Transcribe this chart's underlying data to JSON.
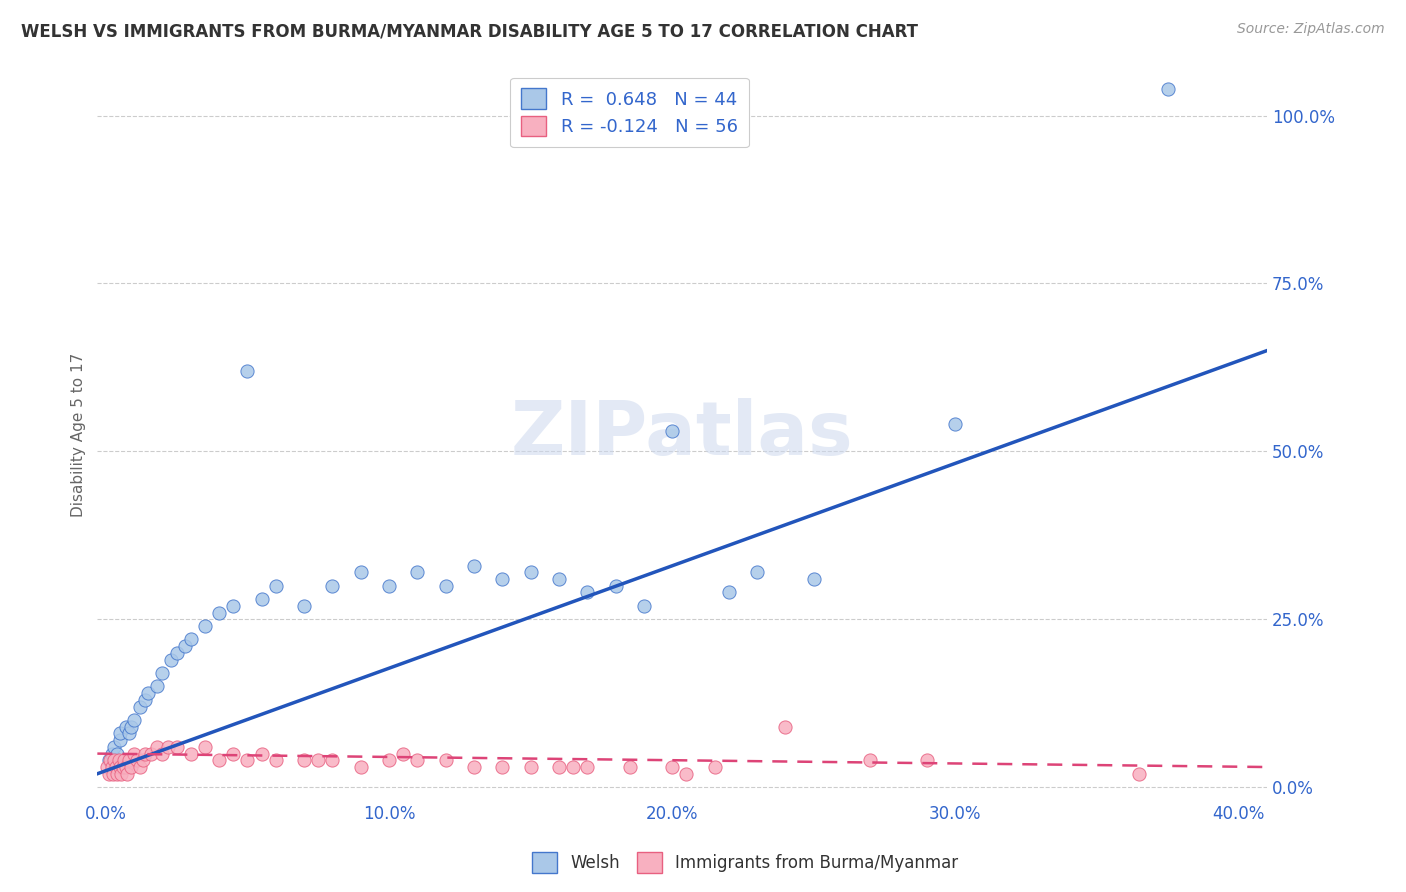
{
  "title": "WELSH VS IMMIGRANTS FROM BURMA/MYANMAR DISABILITY AGE 5 TO 17 CORRELATION CHART",
  "source": "Source: ZipAtlas.com",
  "ylabel": "Disability Age 5 to 17",
  "ylabel_ticks": [
    "0.0%",
    "25.0%",
    "50.0%",
    "75.0%",
    "100.0%"
  ],
  "ylabel_tick_vals": [
    0,
    25,
    50,
    75,
    100
  ],
  "xlabel_ticks": [
    "0.0%",
    "10.0%",
    "20.0%",
    "30.0%",
    "40.0%"
  ],
  "xlabel_tick_vals": [
    0,
    10,
    20,
    30,
    40
  ],
  "xlim": [
    -0.3,
    41
  ],
  "ylim": [
    -2,
    107
  ],
  "welsh_color": "#aac8e8",
  "welsh_edge_color": "#4477cc",
  "burma_color": "#f8b0c0",
  "burma_edge_color": "#e86080",
  "welsh_line_color": "#2255bb",
  "burma_line_color": "#dd4477",
  "welsh_R": 0.648,
  "welsh_N": 44,
  "burma_R": -0.124,
  "burma_N": 56,
  "legend_label_welsh": "Welsh",
  "legend_label_burma": "Immigrants from Burma/Myanmar",
  "watermark": "ZIPatlas",
  "welsh_x": [
    0.1,
    0.2,
    0.3,
    0.4,
    0.5,
    0.5,
    0.7,
    0.8,
    0.9,
    1.0,
    1.2,
    1.4,
    1.5,
    1.8,
    2.0,
    2.3,
    2.5,
    2.8,
    3.0,
    3.5,
    4.0,
    4.5,
    5.0,
    5.5,
    6.0,
    7.0,
    8.0,
    9.0,
    10.0,
    11.0,
    12.0,
    13.0,
    14.0,
    15.0,
    16.0,
    17.0,
    18.0,
    19.0,
    20.0,
    22.0,
    23.0,
    25.0,
    30.0,
    37.5
  ],
  "welsh_y": [
    4,
    5,
    6,
    5,
    7,
    8,
    9,
    8,
    9,
    10,
    12,
    13,
    14,
    15,
    17,
    19,
    20,
    21,
    22,
    24,
    26,
    27,
    62,
    28,
    30,
    27,
    30,
    32,
    30,
    32,
    30,
    33,
    31,
    32,
    31,
    29,
    30,
    27,
    53,
    29,
    32,
    31,
    54,
    104
  ],
  "burma_x": [
    0.05,
    0.1,
    0.15,
    0.2,
    0.25,
    0.3,
    0.35,
    0.4,
    0.45,
    0.5,
    0.55,
    0.6,
    0.65,
    0.7,
    0.75,
    0.8,
    0.9,
    1.0,
    1.1,
    1.2,
    1.3,
    1.4,
    1.6,
    1.8,
    2.0,
    2.2,
    2.5,
    3.0,
    3.5,
    4.0,
    5.0,
    6.0,
    7.0,
    8.0,
    9.0,
    10.0,
    11.0,
    12.0,
    13.0,
    14.0,
    15.0,
    16.0,
    17.0,
    18.5,
    20.0,
    21.5,
    24.0,
    27.0,
    29.0,
    4.5,
    5.5,
    7.5,
    10.5,
    16.5,
    20.5,
    36.5
  ],
  "burma_y": [
    3,
    2,
    4,
    3,
    2,
    4,
    3,
    2,
    4,
    3,
    2,
    3,
    4,
    3,
    2,
    4,
    3,
    5,
    4,
    3,
    4,
    5,
    5,
    6,
    5,
    6,
    6,
    5,
    6,
    4,
    4,
    4,
    4,
    4,
    3,
    4,
    4,
    4,
    3,
    3,
    3,
    3,
    3,
    3,
    3,
    3,
    9,
    4,
    4,
    5,
    5,
    4,
    5,
    3,
    2,
    2
  ]
}
